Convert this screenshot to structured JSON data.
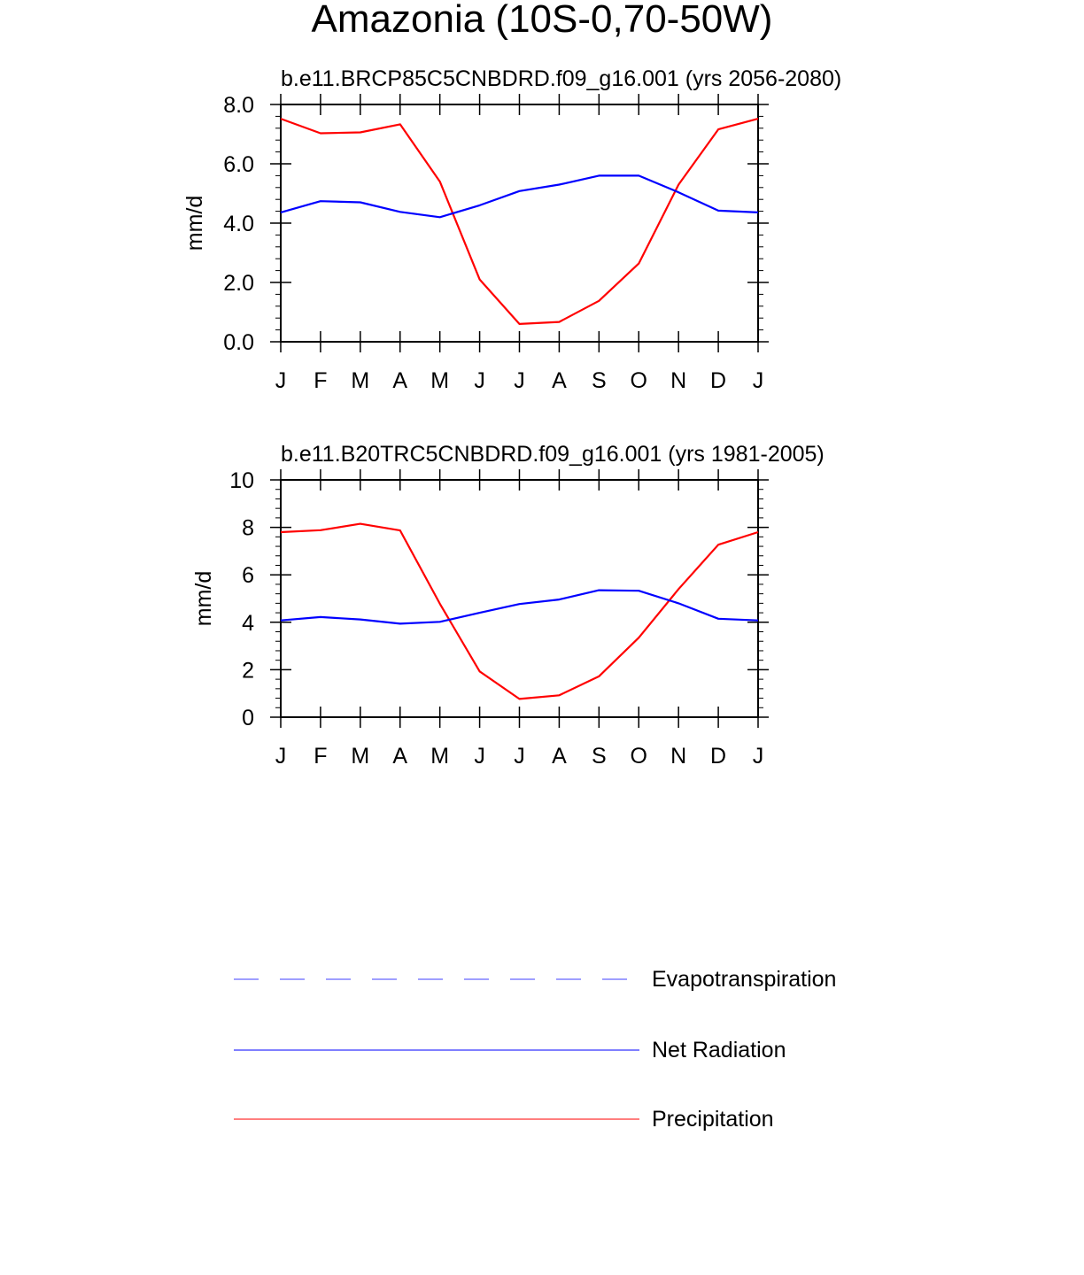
{
  "title": "Amazonia (10S-0,70-50W)",
  "chart_data": [
    {
      "type": "line",
      "title": "b.e11.BRCP85C5CNBDRD.f09_g16.001 (yrs 2056-2080)",
      "ylabel": "mm/d",
      "xlabel": "",
      "categories": [
        "J",
        "F",
        "M",
        "A",
        "M",
        "J",
        "J",
        "A",
        "S",
        "O",
        "N",
        "D",
        "J"
      ],
      "yticks": [
        "0.0",
        "2.0",
        "4.0",
        "6.0",
        "8.0"
      ],
      "ylim": [
        0,
        8
      ],
      "series": [
        {
          "name": "Precipitation",
          "color": "#ff0000",
          "values": [
            7.52,
            7.03,
            7.06,
            7.33,
            5.4,
            2.1,
            0.6,
            0.67,
            1.38,
            2.64,
            5.3,
            7.16,
            7.52
          ]
        },
        {
          "name": "Net Radiation",
          "color": "#0000ff",
          "values": [
            4.36,
            4.74,
            4.7,
            4.38,
            4.2,
            4.6,
            5.08,
            5.3,
            5.6,
            5.6,
            5.04,
            4.42,
            4.36
          ]
        }
      ]
    },
    {
      "type": "line",
      "title": "b.e11.B20TRC5CNBDRD.f09_g16.001 (yrs 1981-2005)",
      "ylabel": "mm/d",
      "xlabel": "",
      "categories": [
        "J",
        "F",
        "M",
        "A",
        "M",
        "J",
        "J",
        "A",
        "S",
        "O",
        "N",
        "D",
        "J"
      ],
      "yticks": [
        "0",
        "2",
        "4",
        "6",
        "8",
        "10"
      ],
      "ylim": [
        0,
        10
      ],
      "series": [
        {
          "name": "Precipitation",
          "color": "#ff0000",
          "values": [
            7.8,
            7.88,
            8.15,
            7.87,
            4.78,
            1.93,
            0.77,
            0.92,
            1.72,
            3.35,
            5.4,
            7.27,
            7.8
          ]
        },
        {
          "name": "Net Radiation",
          "color": "#0000ff",
          "values": [
            4.08,
            4.22,
            4.12,
            3.94,
            4.02,
            4.4,
            4.77,
            4.96,
            5.35,
            5.33,
            4.8,
            4.15,
            4.08
          ]
        }
      ]
    }
  ],
  "legend": [
    {
      "label": "Evapotranspiration",
      "color": "#6666ff",
      "style": "dashed"
    },
    {
      "label": "Net Radiation",
      "color": "#3333ff",
      "style": "solid"
    },
    {
      "label": "Precipitation",
      "color": "#ff3333",
      "style": "solid"
    }
  ]
}
